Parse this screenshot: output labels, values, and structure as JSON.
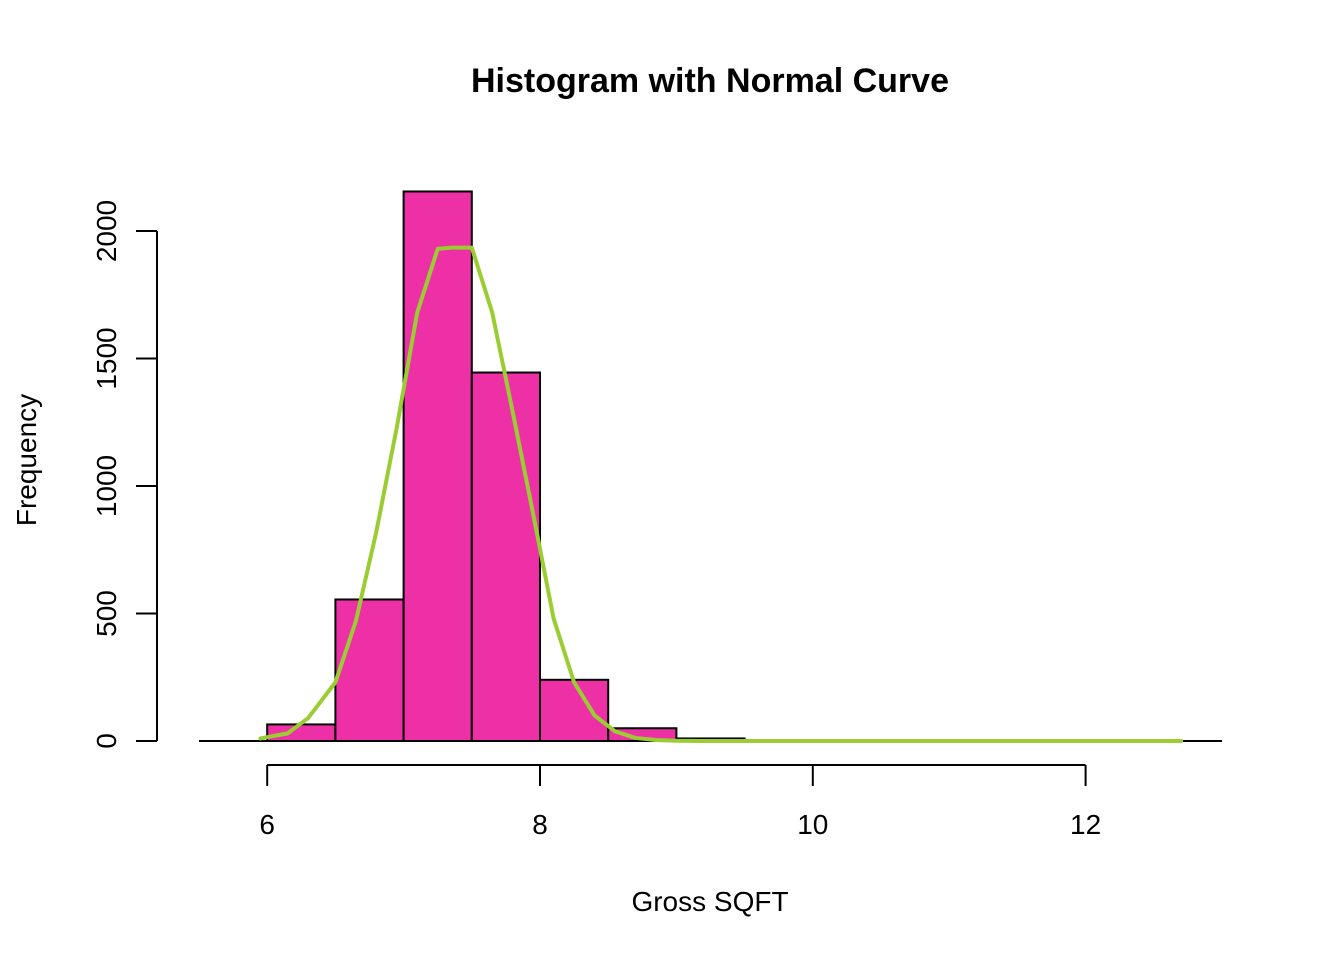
{
  "chart_data": {
    "type": "bar",
    "title": "Histogram with Normal Curve",
    "xlabel": "Gross SQFT",
    "ylabel": "Frequency",
    "xlim": [
      5.5,
      13.0
    ],
    "ylim": [
      0,
      2200
    ],
    "x_ticks": [
      6,
      8,
      10,
      12
    ],
    "y_ticks": [
      0,
      500,
      1000,
      1500,
      2000
    ],
    "bins": [
      {
        "start": 6.0,
        "end": 6.5,
        "value": 65
      },
      {
        "start": 6.5,
        "end": 7.0,
        "value": 555
      },
      {
        "start": 7.0,
        "end": 7.5,
        "value": 2155
      },
      {
        "start": 7.5,
        "end": 8.0,
        "value": 1445
      },
      {
        "start": 8.0,
        "end": 8.5,
        "value": 240
      },
      {
        "start": 8.5,
        "end": 9.0,
        "value": 50
      },
      {
        "start": 9.0,
        "end": 9.5,
        "value": 10
      },
      {
        "start": 9.5,
        "end": 10.0,
        "value": 0
      },
      {
        "start": 10.0,
        "end": 10.5,
        "value": 0
      },
      {
        "start": 10.5,
        "end": 11.0,
        "value": 0
      },
      {
        "start": 11.0,
        "end": 11.5,
        "value": 0
      },
      {
        "start": 11.5,
        "end": 12.0,
        "value": 0
      },
      {
        "start": 12.0,
        "end": 12.5,
        "value": 0
      },
      {
        "start": 12.5,
        "end": 13.0,
        "value": 0
      }
    ],
    "curve": {
      "x": [
        5.95,
        6.15,
        6.3,
        6.5,
        6.65,
        6.8,
        6.95,
        7.1,
        7.25,
        7.35,
        7.5,
        7.65,
        7.8,
        7.95,
        8.1,
        8.25,
        8.4,
        8.55,
        8.7,
        8.85,
        9.0,
        9.2,
        9.5,
        10.0,
        11.0,
        12.0,
        12.7
      ],
      "y": [
        10,
        30,
        90,
        230,
        470,
        820,
        1230,
        1680,
        1930,
        1935,
        1935,
        1680,
        1290,
        890,
        480,
        230,
        100,
        38,
        12,
        4,
        1,
        0,
        0,
        0,
        0,
        0,
        0
      ]
    },
    "grid": false,
    "legend": "none",
    "colors": {
      "bar_fill": "#EE30A7",
      "bar_stroke": "#000000",
      "curve": "#9ACD32",
      "axis": "#000000",
      "background": "#FFFFFF"
    }
  }
}
